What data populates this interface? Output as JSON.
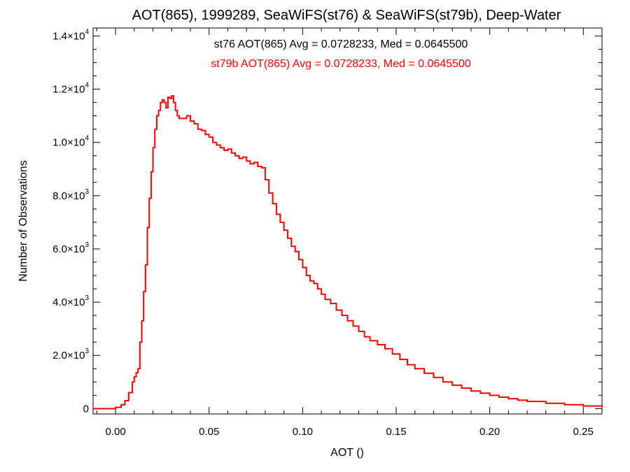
{
  "chart_data": {
    "type": "line",
    "title": "AOT(865), 1999289, SeaWiFS(st76) & SeaWiFS(st79b), Deep-Water",
    "xlabel": "AOT ()",
    "ylabel": "Number of Observations",
    "xlim": [
      -0.012,
      0.26
    ],
    "ylim": [
      -200,
      14300
    ],
    "x_ticks": [
      0.0,
      0.05,
      0.1,
      0.15,
      0.2,
      0.25
    ],
    "x_tick_labels": [
      "0.00",
      "0.05",
      "0.10",
      "0.15",
      "0.20",
      "0.25"
    ],
    "y_ticks": [
      0,
      2000,
      4000,
      6000,
      8000,
      10000,
      12000,
      14000
    ],
    "y_tick_labels": [
      {
        "mant": "0",
        "exp": ""
      },
      {
        "mant": "2.0×10",
        "exp": "3"
      },
      {
        "mant": "4.0×10",
        "exp": "3"
      },
      {
        "mant": "6.0×10",
        "exp": "3"
      },
      {
        "mant": "8.0×10",
        "exp": "3"
      },
      {
        "mant": "1.0×10",
        "exp": "4"
      },
      {
        "mant": "1.2×10",
        "exp": "4"
      },
      {
        "mant": "1.4×10",
        "exp": "4"
      }
    ],
    "grid": false,
    "annotations": [
      {
        "text": "st76 AOT(865) Avg = 0.0728233, Med = 0.0645500",
        "color": "#000000"
      },
      {
        "text": "st79b AOT(865) Avg = 0.0728233, Med = 0.0645500",
        "color": "#ff0000"
      }
    ],
    "series": [
      {
        "color": "#ff0000",
        "x": [
          -0.012,
          -0.005,
          0.0,
          0.003,
          0.005,
          0.007,
          0.009,
          0.01,
          0.011,
          0.012,
          0.013,
          0.014,
          0.015,
          0.016,
          0.017,
          0.018,
          0.019,
          0.02,
          0.021,
          0.022,
          0.023,
          0.024,
          0.025,
          0.026,
          0.027,
          0.028,
          0.029,
          0.03,
          0.031,
          0.032,
          0.033,
          0.034,
          0.036,
          0.038,
          0.04,
          0.042,
          0.044,
          0.046,
          0.048,
          0.05,
          0.052,
          0.054,
          0.056,
          0.058,
          0.06,
          0.062,
          0.064,
          0.066,
          0.068,
          0.07,
          0.072,
          0.074,
          0.076,
          0.078,
          0.08,
          0.082,
          0.084,
          0.086,
          0.088,
          0.09,
          0.092,
          0.094,
          0.096,
          0.098,
          0.1,
          0.102,
          0.104,
          0.106,
          0.108,
          0.11,
          0.112,
          0.115,
          0.118,
          0.121,
          0.124,
          0.127,
          0.13,
          0.133,
          0.136,
          0.14,
          0.144,
          0.148,
          0.152,
          0.156,
          0.16,
          0.165,
          0.17,
          0.175,
          0.18,
          0.185,
          0.19,
          0.195,
          0.2,
          0.205,
          0.21,
          0.215,
          0.22,
          0.23,
          0.24,
          0.25,
          0.26
        ],
        "y": [
          0,
          0,
          50,
          150,
          300,
          600,
          1000,
          1200,
          1350,
          1500,
          2500,
          3300,
          4400,
          5400,
          6800,
          7900,
          8900,
          9800,
          10500,
          11000,
          11200,
          11500,
          11600,
          11500,
          11300,
          11700,
          11650,
          11750,
          11500,
          11200,
          11000,
          10900,
          10900,
          11000,
          10800,
          10700,
          10500,
          10450,
          10300,
          10200,
          10000,
          9900,
          9800,
          9700,
          9750,
          9600,
          9500,
          9400,
          9450,
          9300,
          9200,
          9250,
          9100,
          9050,
          8600,
          8100,
          7700,
          7300,
          7000,
          6700,
          6400,
          6100,
          5900,
          5600,
          5300,
          5000,
          4800,
          4700,
          4500,
          4300,
          4100,
          3950,
          3700,
          3500,
          3300,
          3100,
          2900,
          2700,
          2550,
          2400,
          2250,
          2050,
          1850,
          1650,
          1500,
          1330,
          1170,
          1000,
          880,
          770,
          660,
          580,
          500,
          430,
          370,
          320,
          270,
          200,
          150,
          100,
          70
        ]
      }
    ]
  }
}
